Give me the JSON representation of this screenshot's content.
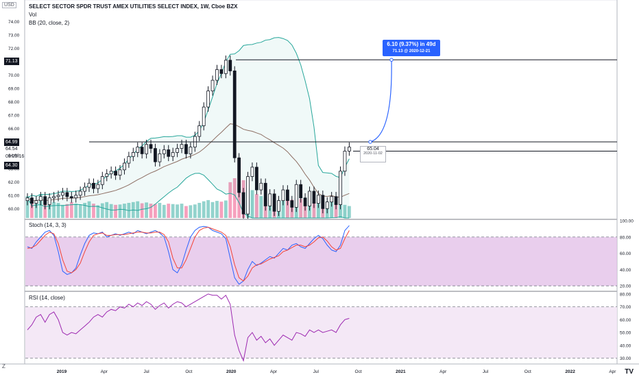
{
  "header": {
    "title": "SELECT SECTOR SPDR TRUST AMEX UTILITIES SELECT INDEX, 1W, Cboe BZX",
    "vol_label": "Vol",
    "bb_label": "BB (20, close, 2)",
    "currency": "USD",
    "bottom_left": "Z"
  },
  "panes": {
    "stoch_label": "Stoch (14, 3, 3)",
    "rsi_label": "RSI (14, close)"
  },
  "price_tags": {
    "hline_high": "71.13",
    "hline_mid": "64.99",
    "last_price": "64.54",
    "countdown": "03:25:16",
    "crosshair": "64.30"
  },
  "annotation": {
    "line1": "6.10 (9.37%) in 49d",
    "line2": "71.13 @ 2020-12-21"
  },
  "point_label": {
    "value": "65.04",
    "date": "2020-11-02"
  },
  "branding": {
    "logo": "TV"
  },
  "colors": {
    "up": "#131722",
    "down": "#131722",
    "bb_band": "#26a69a",
    "bb_basis": "#8d6e63",
    "vol_up": "#80cbc4",
    "vol_down": "#f48fb1",
    "stoch_k": "#2962ff",
    "stoch_d": "#f44336",
    "stoch_bg": "#e1bee7",
    "rsi": "#9c27b0",
    "rsi_bg": "#f3e5f5",
    "annotation": "#2962ff"
  },
  "chart_data": [
    {
      "type": "candlestick",
      "title": "SELECT SECTOR SPDR TRUST AMEX UTILITIES SELECT INDEX, 1W, Cboe BZX",
      "ylim": [
        59.3,
        75.5
      ],
      "y_ticks": [
        "60.00",
        "61.00",
        "62.00",
        "63.00",
        "64.00",
        "65.00",
        "66.00",
        "67.00",
        "68.00",
        "69.00",
        "70.00",
        "71.00",
        "72.00",
        "73.00",
        "74.00",
        "75.00"
      ],
      "x_ticks": [
        "2019",
        "Apr",
        "Jul",
        "Oct",
        "2020",
        "Apr",
        "Jul",
        "Oct",
        "2021",
        "Apr",
        "Jul",
        "Oct",
        "2022",
        "Apr"
      ],
      "horizontal_lines": [
        71.13,
        64.99
      ],
      "projection": {
        "from": 64.99,
        "to": 71.13,
        "change": 6.1,
        "pct": 9.37,
        "days": 49,
        "target_date": "2020-12-21"
      },
      "closes": [
        60.8,
        60.4,
        60.6,
        60.9,
        60.3,
        60.8,
        60.9,
        61.0,
        61.2,
        60.9,
        60.8,
        61.0,
        61.3,
        61.6,
        61.9,
        61.5,
        61.8,
        62.4,
        62.6,
        62.8,
        62.5,
        62.9,
        63.4,
        63.9,
        64.2,
        64.6,
        64.1,
        64.8,
        64.5,
        63.5,
        64.1,
        64.4,
        63.9,
        64.2,
        64.5,
        64.8,
        64.1,
        64.6,
        65.4,
        66.2,
        67.6,
        68.8,
        69.6,
        70.4,
        70.1,
        71.1,
        70.3,
        63.8,
        61.2,
        59.6,
        62.4,
        63.1,
        61.4,
        61.9,
        60.2,
        61.1,
        59.8,
        60.6,
        61.4,
        60.6,
        60.1,
        61.8,
        60.8,
        60.2,
        61.3,
        60.4,
        61.0,
        60.0,
        60.5,
        60.9,
        60.3,
        62.8,
        64.3,
        64.6
      ]
    },
    {
      "type": "bar",
      "name": "Vol",
      "values": [
        0.55,
        0.45,
        0.38,
        0.6,
        0.42,
        0.35,
        0.4,
        0.38,
        0.33,
        0.35,
        0.4,
        0.36,
        0.34,
        0.38,
        0.42,
        0.36,
        0.32,
        0.37,
        0.4,
        0.35,
        0.33,
        0.34,
        0.36,
        0.38,
        0.4,
        0.42,
        0.37,
        0.39,
        0.36,
        0.35,
        0.38,
        0.33,
        0.36,
        0.35,
        0.34,
        0.36,
        0.3,
        0.32,
        0.34,
        0.38,
        0.42,
        0.45,
        0.4,
        0.43,
        0.41,
        0.44,
        0.9,
        1.0,
        0.85,
        0.95,
        0.75,
        0.7,
        0.6,
        0.55,
        0.52,
        0.48,
        0.45,
        0.44,
        0.5,
        0.48,
        0.46,
        0.5,
        0.48,
        0.45,
        0.44,
        0.42,
        0.46,
        0.43,
        0.4,
        0.42,
        0.38,
        0.34,
        0.33,
        0.3
      ]
    },
    {
      "type": "line",
      "name": "Stoch (14, 3, 3)",
      "ylim": [
        15,
        100
      ],
      "y_ticks": [
        "20.00",
        "40.00",
        "60.00",
        "80.00",
        "100.00"
      ],
      "bands": [
        20,
        80
      ],
      "series": [
        {
          "name": "K",
          "values": [
            68,
            66,
            74,
            80,
            86,
            88,
            82,
            62,
            38,
            34,
            36,
            42,
            58,
            72,
            82,
            85,
            84,
            86,
            80,
            82,
            84,
            82,
            84,
            86,
            84,
            88,
            86,
            84,
            86,
            88,
            85,
            80,
            62,
            40,
            36,
            46,
            64,
            80,
            88,
            92,
            93,
            92,
            88,
            86,
            84,
            78,
            54,
            30,
            22,
            26,
            40,
            50,
            45,
            48,
            52,
            56,
            54,
            60,
            66,
            64,
            70,
            72,
            68,
            66,
            72,
            78,
            82,
            78,
            70,
            64,
            62,
            70,
            88,
            94
          ]
        },
        {
          "name": "D",
          "values": [
            66,
            67,
            70,
            76,
            82,
            86,
            84,
            72,
            52,
            38,
            36,
            40,
            48,
            62,
            74,
            82,
            84,
            85,
            82,
            82,
            83,
            83,
            83,
            84,
            85,
            86,
            86,
            85,
            85,
            86,
            86,
            83,
            74,
            54,
            42,
            42,
            52,
            66,
            80,
            88,
            91,
            92,
            90,
            88,
            86,
            82,
            68,
            46,
            30,
            26,
            32,
            42,
            46,
            47,
            50,
            53,
            55,
            57,
            62,
            64,
            67,
            70,
            70,
            68,
            70,
            74,
            79,
            80,
            75,
            68,
            64,
            66,
            78,
            88
          ]
        }
      ]
    },
    {
      "type": "line",
      "name": "RSI (14, close)",
      "ylim": [
        26,
        81
      ],
      "y_ticks": [
        "30.00",
        "40.00",
        "50.00",
        "60.00",
        "70.00",
        "80.00"
      ],
      "bands": [
        30,
        70
      ],
      "values": [
        52,
        56,
        62,
        64,
        58,
        64,
        66,
        60,
        50,
        48,
        50,
        49,
        52,
        55,
        58,
        62,
        64,
        62,
        66,
        68,
        67,
        70,
        69,
        72,
        70,
        73,
        71,
        74,
        72,
        68,
        71,
        73,
        69,
        72,
        74,
        73,
        70,
        72,
        74,
        76,
        78,
        80,
        79,
        79,
        76,
        79,
        72,
        48,
        36,
        28,
        46,
        50,
        44,
        47,
        42,
        45,
        40,
        44,
        48,
        46,
        44,
        50,
        49,
        47,
        52,
        50,
        52,
        50,
        51,
        52,
        50,
        56,
        60,
        61
      ]
    }
  ]
}
